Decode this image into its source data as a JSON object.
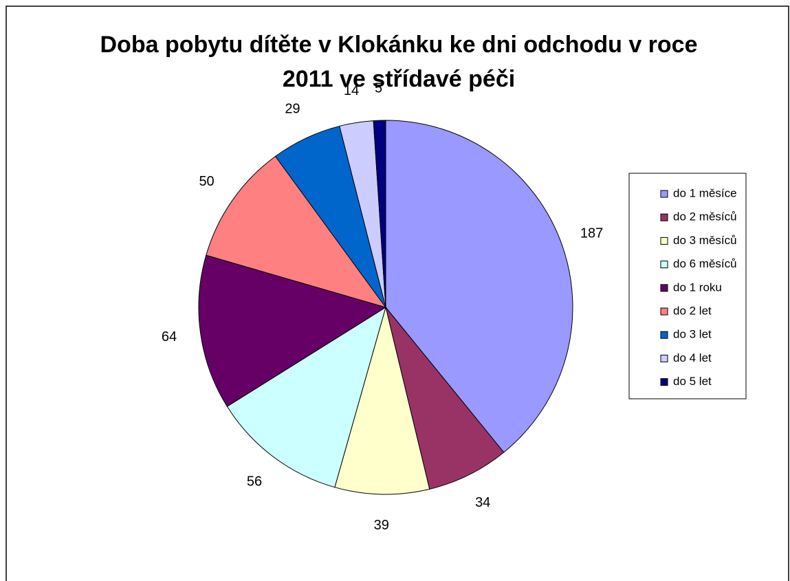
{
  "chart_data": {
    "type": "pie",
    "title": "Doba pobytu dítěte v Klokánku ke dni odchodu v roce 2011 ve střídavé péči",
    "categories": [
      "do 1 měsíce",
      "do 2 měsíců",
      "do 3 měsíců",
      "do 6 měsíců",
      "do 1 roku",
      "do 2 let",
      "do 3 let",
      "do 4 let",
      "do 5 let"
    ],
    "values": [
      187,
      34,
      39,
      56,
      64,
      50,
      29,
      14,
      5
    ],
    "colors": [
      "#9999ff",
      "#993366",
      "#ffffcc",
      "#ccffff",
      "#660066",
      "#ff8080",
      "#0066cc",
      "#ccccff",
      "#000080"
    ],
    "legend": "right"
  }
}
